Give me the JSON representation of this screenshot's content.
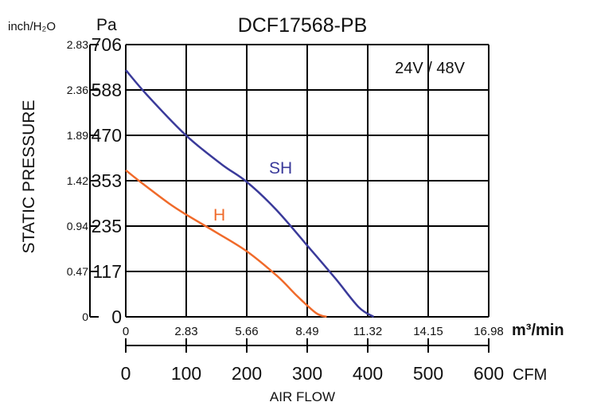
{
  "chart_data": {
    "type": "line",
    "title": "DCF17568-PB",
    "annotation": "24V / 48V",
    "y_unit_left": "inch/H₂O",
    "y_unit_right": "Pa",
    "ylabel": "STATIC PRESSURE",
    "xlabel": "AIR FLOW",
    "x_unit_primary": "m³/min",
    "x_unit_secondary": "CFM",
    "xlim": [
      0,
      16.98
    ],
    "ylim": [
      0,
      706
    ],
    "grid": true,
    "x_ticks_m3min": [
      "0",
      "2.83",
      "5.66",
      "8.49",
      "11.32",
      "14.15",
      "16.98"
    ],
    "x_ticks_cfm": [
      "0",
      "100",
      "200",
      "300",
      "400",
      "500",
      "600"
    ],
    "y_ticks_pa": [
      "0",
      "117",
      "235",
      "353",
      "470",
      "588",
      "706"
    ],
    "y_ticks_inh2o": [
      "0",
      "0.47",
      "0.94",
      "1.42",
      "1.89",
      "2.36",
      "2.83"
    ],
    "series": [
      {
        "name": "SH",
        "color": "#3a3a9a",
        "x": [
          0,
          1.0,
          2.83,
          4.5,
          5.66,
          7.0,
          8.49,
          9.8,
          10.9,
          11.6
        ],
        "y": [
          640,
          575,
          470,
          395,
          350,
          280,
          185,
          100,
          25,
          0
        ]
      },
      {
        "name": "H",
        "color": "#f06a2a",
        "x": [
          0,
          0.8,
          2.0,
          2.83,
          4.2,
          5.66,
          7.1,
          8.0,
          8.9,
          9.4
        ],
        "y": [
          380,
          345,
          295,
          265,
          220,
          170,
          105,
          55,
          10,
          0
        ]
      }
    ]
  }
}
